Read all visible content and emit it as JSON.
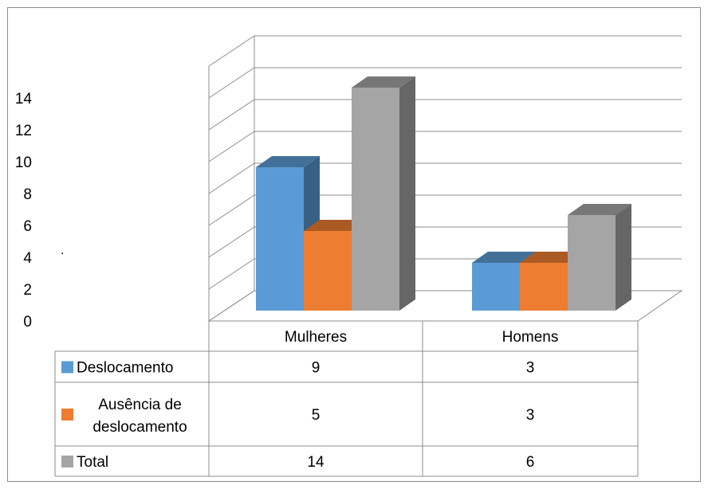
{
  "chart_data": {
    "type": "bar",
    "variant": "3d-clustered-column-with-data-table",
    "categories": [
      "Mulheres",
      "Homens"
    ],
    "series": [
      {
        "name": "Deslocamento",
        "name_lines": [
          "Deslocamento"
        ],
        "values": [
          9,
          3
        ],
        "color": "#5b9bd5"
      },
      {
        "name": "Ausência de deslocamento",
        "name_lines": [
          "Ausência de",
          "deslocamento"
        ],
        "values": [
          5,
          3
        ],
        "color": "#ed7d31"
      },
      {
        "name": "Total",
        "name_lines": [
          "Total"
        ],
        "values": [
          14,
          6
        ],
        "color": "#a5a5a5"
      }
    ],
    "table_cells": [
      [
        "9",
        "3"
      ],
      [
        "5",
        "3"
      ],
      [
        "14",
        "6"
      ]
    ],
    "y_ticks": [
      "0",
      "2",
      "4",
      "6",
      "8",
      "10",
      "12",
      "14"
    ],
    "ylim": [
      0,
      16
    ],
    "grid": true,
    "legend": "data-table"
  },
  "stray_mark": "."
}
